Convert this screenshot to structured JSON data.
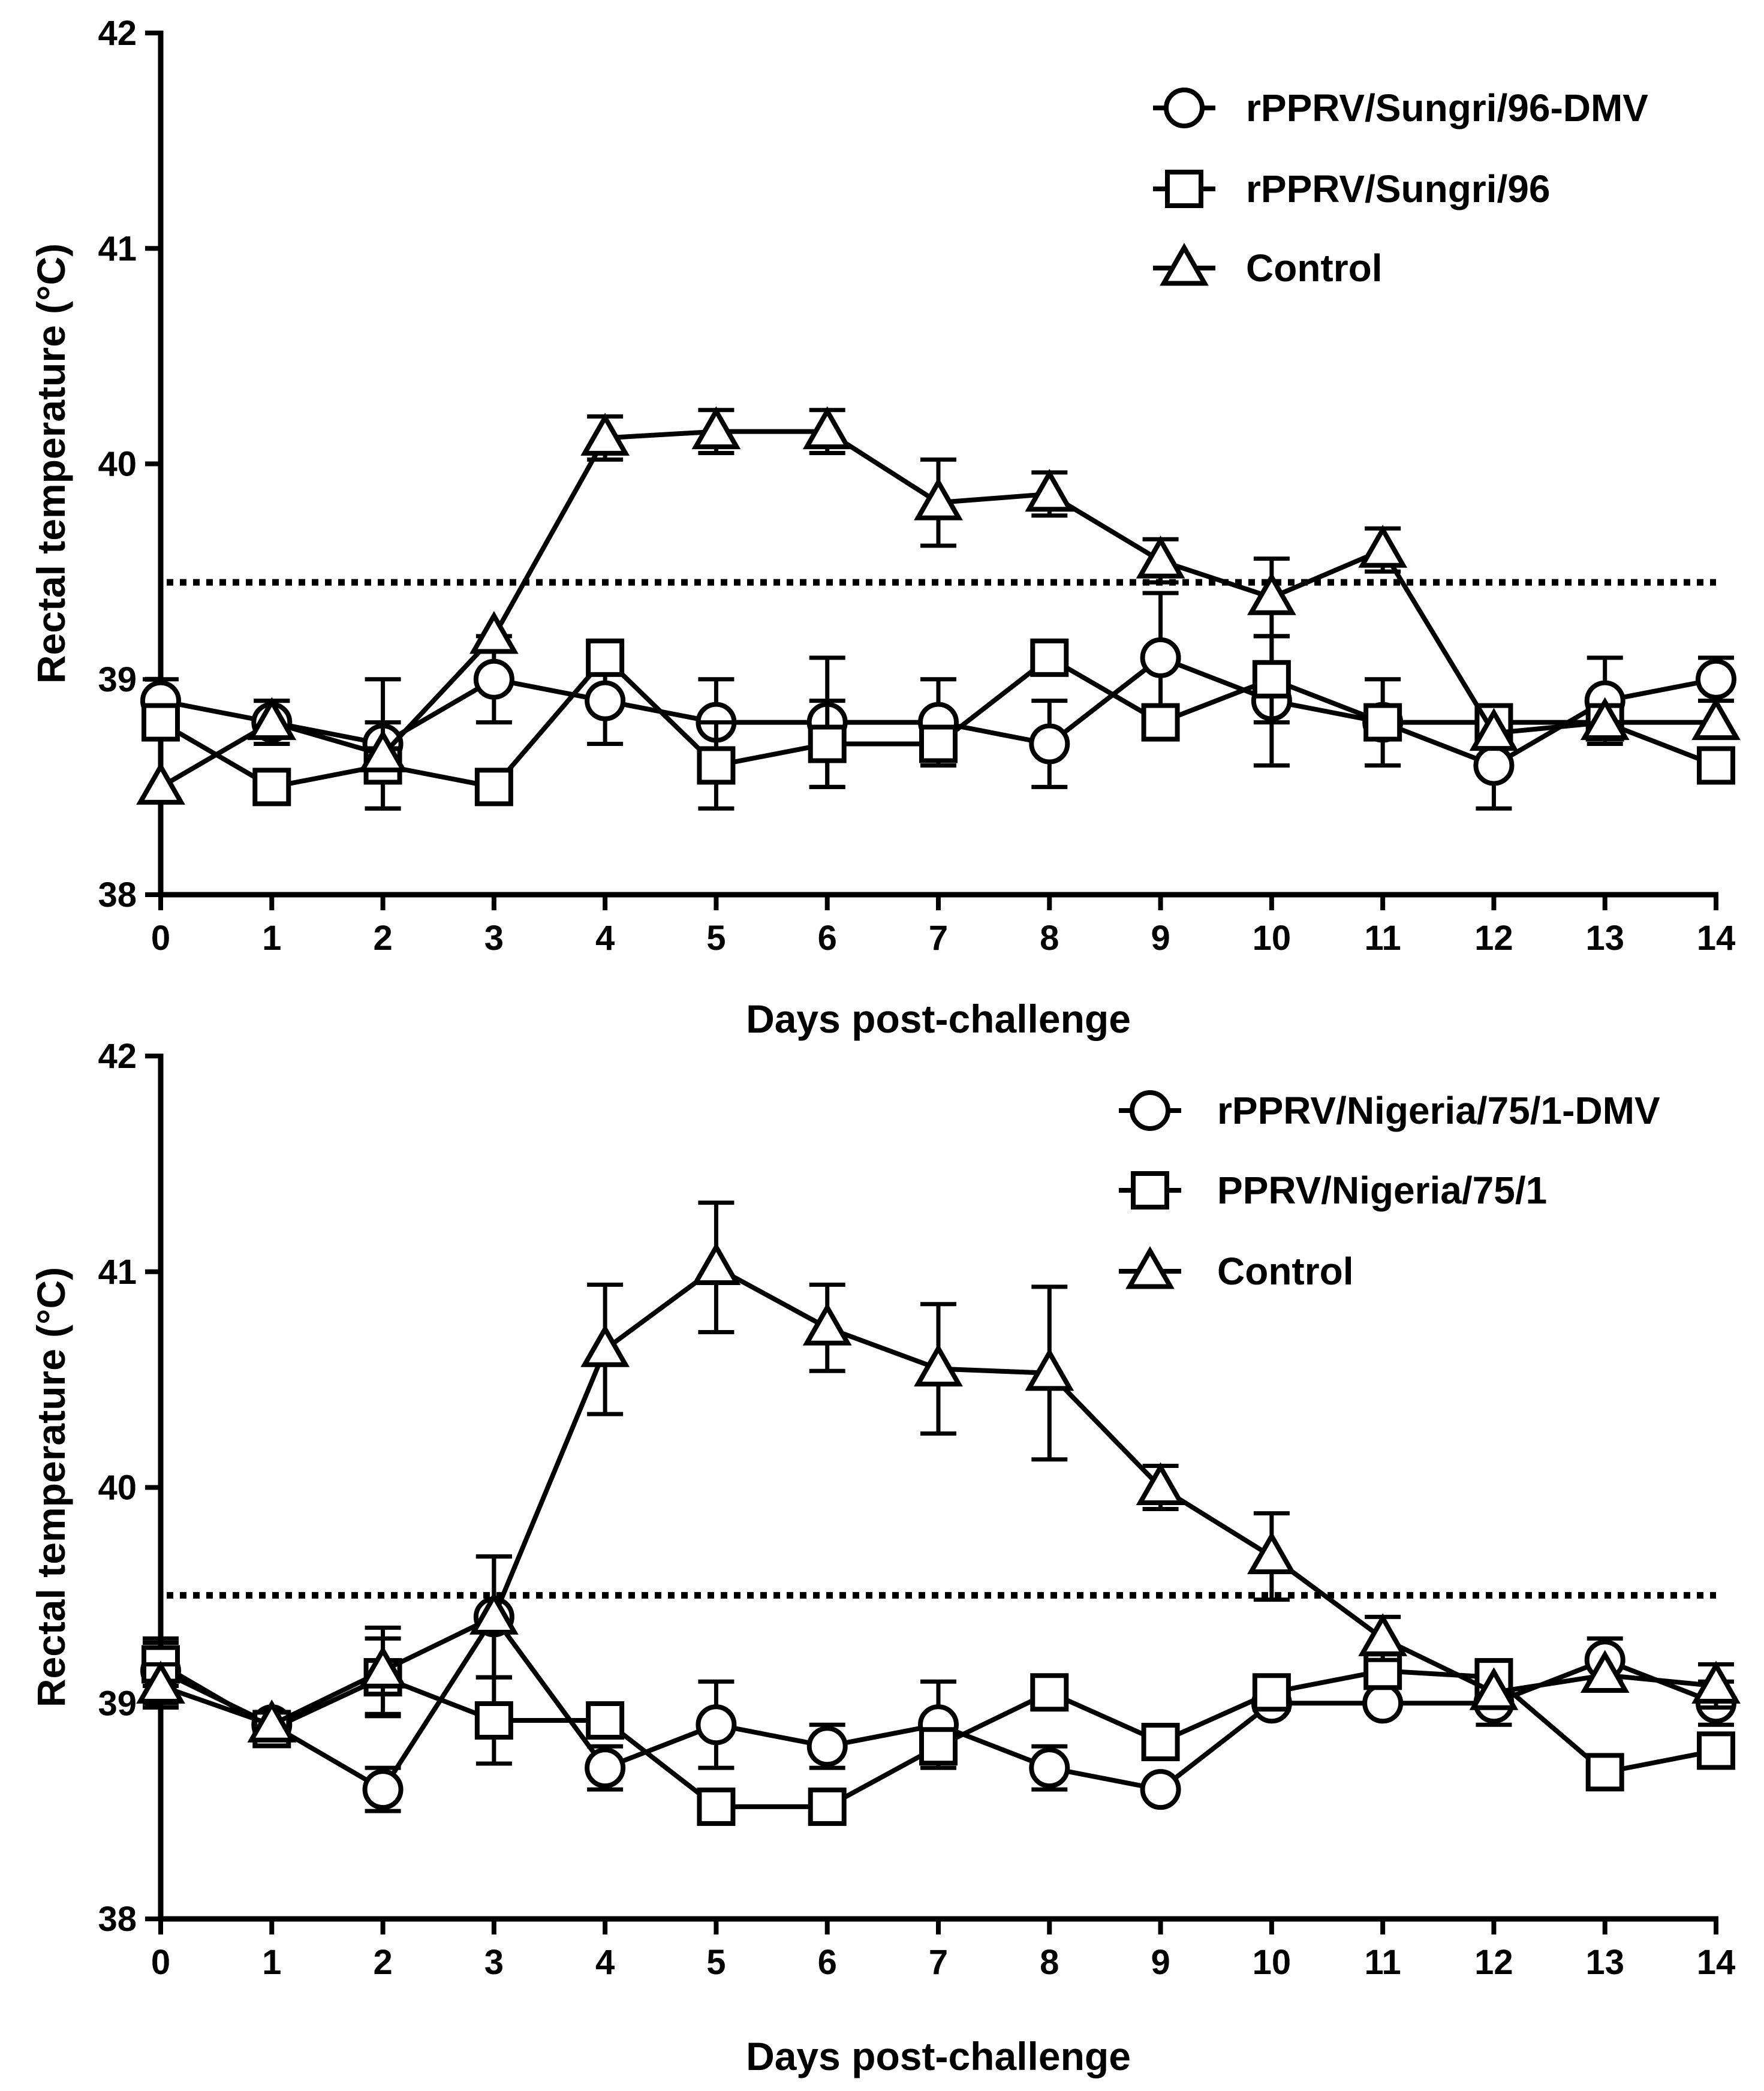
{
  "chart_data": [
    {
      "type": "line",
      "panel": "top",
      "xlabel": "Days post-challenge",
      "ylabel": "Rectal temperature (°C)",
      "x": [
        0,
        1,
        2,
        3,
        4,
        5,
        6,
        7,
        8,
        9,
        10,
        11,
        12,
        13,
        14
      ],
      "x_ticks": [
        "0",
        "1",
        "2",
        "3",
        "4",
        "5",
        "6",
        "7",
        "8",
        "9",
        "10",
        "11",
        "12",
        "13",
        "14"
      ],
      "y_ticks": [
        "38",
        "39",
        "40",
        "41",
        "42"
      ],
      "xlim": [
        0,
        14
      ],
      "ylim": [
        38,
        42
      ],
      "threshold": 39.45,
      "legend_position": "top-right",
      "series": [
        {
          "name": "rPPRV/Sungri/96-DMV",
          "marker": "circle",
          "values": [
            38.9,
            38.8,
            38.7,
            39.0,
            38.9,
            38.8,
            38.8,
            38.8,
            38.7,
            39.1,
            38.9,
            38.8,
            38.6,
            38.9,
            39.0
          ],
          "errors": [
            0.1,
            0.1,
            0.3,
            0.2,
            0.2,
            0.2,
            0.3,
            0.2,
            0.2,
            0.3,
            0.3,
            0.2,
            0.2,
            0.2,
            0.1
          ]
        },
        {
          "name": "rPPRV/Sungri/96",
          "marker": "square",
          "values": [
            38.8,
            38.5,
            38.6,
            38.5,
            39.1,
            38.6,
            38.7,
            38.7,
            39.1,
            38.8,
            39.0,
            38.8,
            38.8,
            38.8,
            38.6
          ],
          "errors": [
            0,
            0,
            0.2,
            0,
            0,
            0.2,
            0.2,
            0,
            0,
            0,
            0.2,
            0,
            0,
            0,
            0
          ]
        },
        {
          "name": "Control",
          "marker": "triangle",
          "values": [
            38.5,
            38.8,
            38.65,
            39.2,
            40.12,
            40.15,
            40.15,
            39.82,
            39.86,
            39.55,
            39.38,
            39.6,
            38.75,
            38.8,
            38.8
          ],
          "errors": [
            0,
            0.1,
            0,
            0,
            0.1,
            0.1,
            0.1,
            0.2,
            0.1,
            0.1,
            0.18,
            0.1,
            0,
            0,
            0
          ]
        }
      ]
    },
    {
      "type": "line",
      "panel": "bottom",
      "xlabel": "Days post-challenge",
      "ylabel": "Rectal temperature (°C)",
      "x": [
        0,
        1,
        2,
        3,
        4,
        5,
        6,
        7,
        8,
        9,
        10,
        11,
        12,
        13,
        14
      ],
      "x_ticks": [
        "0",
        "1",
        "2",
        "3",
        "4",
        "5",
        "6",
        "7",
        "8",
        "9",
        "10",
        "11",
        "12",
        "13",
        "14"
      ],
      "y_ticks": [
        "38",
        "39",
        "40",
        "41",
        "42"
      ],
      "xlim": [
        0,
        14
      ],
      "ylim": [
        38,
        42
      ],
      "threshold": 39.5,
      "legend_position": "top-right",
      "series": [
        {
          "name": "rPPRV/Nigeria/75/1-DMV",
          "marker": "circle",
          "values": [
            39.15,
            38.9,
            38.6,
            39.4,
            38.7,
            38.9,
            38.8,
            38.9,
            38.7,
            38.6,
            39.0,
            39.0,
            39.0,
            39.2,
            39.0
          ],
          "errors": [
            0.15,
            0,
            0.1,
            0.28,
            0.1,
            0.2,
            0.1,
            0.2,
            0.1,
            0,
            0,
            0,
            0.1,
            0.1,
            0.1
          ]
        },
        {
          "name": "PPRV/Nigeria/75/1",
          "marker": "square",
          "values": [
            39.18,
            38.88,
            39.12,
            38.92,
            38.92,
            38.52,
            38.52,
            38.8,
            39.05,
            38.82,
            39.05,
            39.15,
            39.12,
            38.68,
            38.78
          ],
          "errors": [
            0.1,
            0,
            0.18,
            0.2,
            0,
            0,
            0,
            0,
            0,
            0,
            0,
            0,
            0,
            0,
            0
          ]
        },
        {
          "name": "Control",
          "marker": "triangle",
          "values": [
            39.08,
            38.9,
            39.15,
            39.4,
            40.64,
            41.02,
            40.74,
            40.55,
            40.53,
            40.0,
            39.68,
            39.3,
            39.05,
            39.13,
            39.08
          ],
          "errors": [
            0.1,
            0,
            0.2,
            0.28,
            0.3,
            0.3,
            0.2,
            0.3,
            0.4,
            0.1,
            0.2,
            0.1,
            0,
            0,
            0.1
          ]
        }
      ]
    }
  ]
}
